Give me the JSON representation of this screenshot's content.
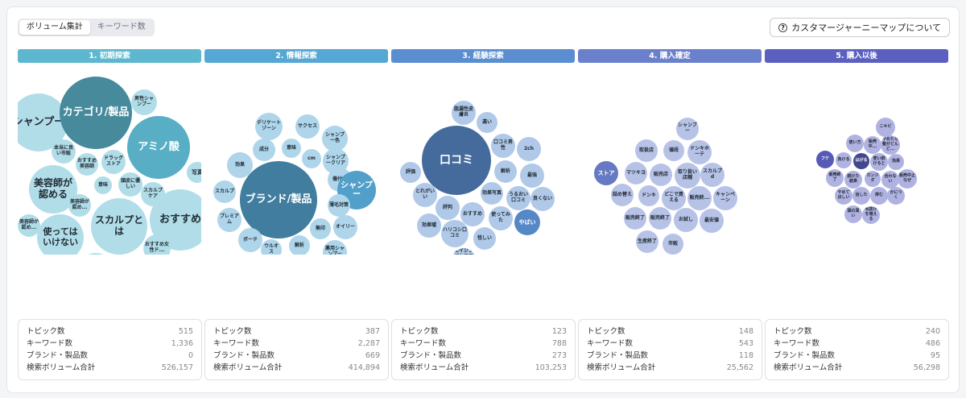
{
  "toggle": {
    "options": [
      "ボリューム集計",
      "キーワード数"
    ],
    "selected": "ボリューム集計"
  },
  "help_button": {
    "icon": "question-circle-icon",
    "label": "カスタマージャーニーマップについて"
  },
  "stats_labels": [
    "トピック数",
    "キーワード数",
    "ブランド・製品数",
    "検索ボリューム合計"
  ],
  "stages": [
    {
      "label": "1. 初期探索",
      "color": "#5db8cf",
      "bubbles": [
        "シャンプー",
        "カテゴリ/製品",
        "男性シャンプー",
        "アミノ酸",
        "本当に良い市販",
        "おすすめ美容師",
        "ドラッグストア",
        "写真",
        "美容師が認める",
        "意味",
        "頭皮に優しい",
        "スカルプケア",
        "美容師が認め...",
        "美容師が認め...",
        "スカルプとは",
        "おすすめ",
        "使ってはいけない",
        "おすすめ女性ド...",
        "市販",
        "スカルプシャン..."
      ],
      "stats": [
        "515",
        "1,336",
        "0",
        "526,157"
      ]
    },
    {
      "label": "2. 情報探索",
      "color": "#56a7d4",
      "bubbles": [
        "デリケートゾーン",
        "サクセス",
        "シャンプー色",
        "成分",
        "意味",
        "cm",
        "シャンプークリア",
        "効果",
        "傷付毛",
        "スカルプ",
        "ブランド/製品",
        "シャンプー",
        "薄毛対策",
        "プレミアム",
        "無印",
        "オイリー",
        "ボーテ",
        "ウルオス",
        "解析",
        "薬用シャンプー"
      ],
      "stats": [
        "387",
        "2,287",
        "669",
        "414,894"
      ]
    },
    {
      "label": "3. 経験探索",
      "color": "#5a8ed0",
      "bubbles": [
        "脂漏性皮膚炎",
        "違い",
        "口コミ男性",
        "2ch",
        "評価",
        "口コミ",
        "解析",
        "最強",
        "効果写真",
        "とれがいい",
        "うるおい口コミ",
        "良くない",
        "評判",
        "おすすめ",
        "使ってみた",
        "効果嘘",
        "やばい",
        "ハリコシ口コミ",
        "怪しい",
        "エイジングケアエッセンス違い"
      ],
      "stats": [
        "123",
        "788",
        "273",
        "103,253"
      ]
    },
    {
      "label": "4. 購入確定",
      "color": "#6a80cc",
      "bubbles": [
        "シャンプー",
        "取扱店",
        "値段",
        "ドンキホーテ",
        "ストア",
        "マツキヨ",
        "販売店",
        "取り扱い店舗",
        "スカルプd",
        "詰め替え",
        "ドンキ",
        "どこで買える",
        "販売終...",
        "キャンペーン",
        "販売終了",
        "販売終了",
        "お試し",
        "最安値",
        "生産終了",
        "市販"
      ],
      "stats": [
        "148",
        "543",
        "118",
        "25,562"
      ]
    },
    {
      "label": "5. 購入以後",
      "color": "#5a5fc0",
      "bubbles": [
        "ニキビ",
        "使い方",
        "販売中...",
        "やめたら髪がどんど...",
        "フケ",
        "負ける",
        "はげる",
        "使い続けると",
        "効果",
        "販売終了",
        "続けた結果",
        "カンジダ",
        "合わない",
        "販売中止なぜ",
        "やめてほしい",
        "治した",
        "痒む",
        "かにつく",
        "頭の臭い",
        "毛抜けを増える"
      ],
      "stats": [
        "240",
        "486",
        "95",
        "56,298"
      ]
    }
  ]
}
